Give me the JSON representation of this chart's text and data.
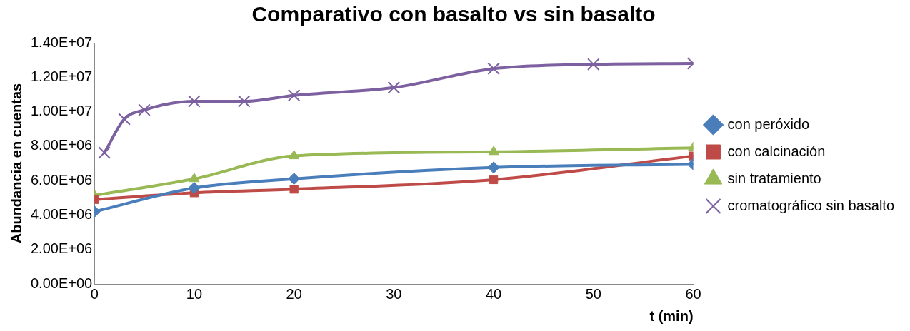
{
  "chart_data": {
    "type": "line",
    "title": "Comparativo con basalto vs sin basalto",
    "xlabel": "t (min)",
    "ylabel": "Abundancia en cuentas",
    "xlim": [
      0,
      60
    ],
    "xticks": [
      0,
      10,
      20,
      30,
      40,
      50,
      60
    ],
    "ylim": [
      0,
      14000000
    ],
    "yticks": [
      {
        "value": 0,
        "label": "0.00E+00"
      },
      {
        "value": 2000000,
        "label": "2.00E+06"
      },
      {
        "value": 4000000,
        "label": "4.00E+06"
      },
      {
        "value": 6000000,
        "label": "6.00E+06"
      },
      {
        "value": 8000000,
        "label": "8.00E+06"
      },
      {
        "value": 10000000,
        "label": "1.00E+07"
      },
      {
        "value": 12000000,
        "label": "1.20E+07"
      },
      {
        "value": 14000000,
        "label": "1.40E+07"
      }
    ],
    "grid": false,
    "legend": "right",
    "line_style": "solid",
    "series": [
      {
        "name": "con peróxido",
        "color": "#4a7ebb",
        "marker": "diamond",
        "x": [
          0,
          10,
          20,
          40,
          60
        ],
        "values": [
          4200000,
          5570000,
          6100000,
          6760000,
          6950000
        ]
      },
      {
        "name": "con calcinación",
        "color": "#be4b48",
        "marker": "square",
        "x": [
          0,
          10,
          20,
          40,
          60
        ],
        "values": [
          4900000,
          5290000,
          5500000,
          6050000,
          7430000
        ]
      },
      {
        "name": "sin tratamiento",
        "color": "#98b954",
        "marker": "triangle",
        "x": [
          0,
          10,
          20,
          40,
          60
        ],
        "values": [
          5140000,
          6100000,
          7430000,
          7670000,
          7900000
        ]
      },
      {
        "name": "cromatográfico sin basalto",
        "color": "#7d60a0",
        "marker": "cross",
        "x": [
          1,
          3,
          5,
          10,
          15,
          20,
          30,
          40,
          50,
          60
        ],
        "values": [
          7620000,
          9570000,
          10100000,
          10600000,
          10600000,
          10950000,
          11400000,
          12500000,
          12750000,
          12800000
        ]
      }
    ]
  }
}
